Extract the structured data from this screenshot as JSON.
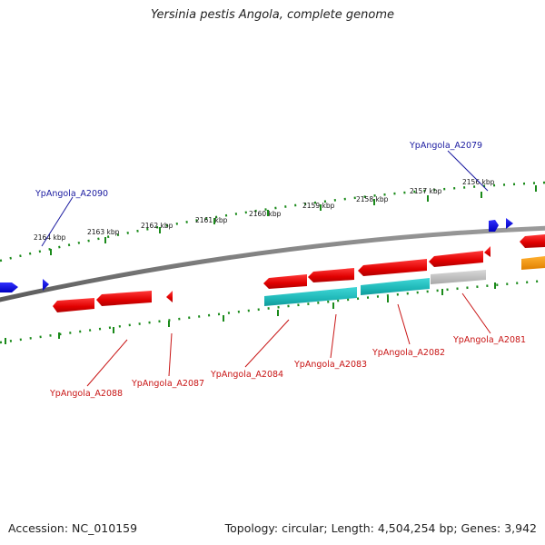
{
  "title": "Yersinia pestis Angola, complete genome",
  "footer": {
    "accession": "Accession: NC_010159",
    "topology": "Topology: circular; Length: 4,504,254 bp; Genes: 3,942"
  },
  "colors": {
    "backbone": "#7f7f7f",
    "tick": "#1a8a1a",
    "forward_gene": "#1010e6",
    "reverse_gene": "#e60000",
    "rna": "#20c0c0",
    "pseudo": "#c0c0c0",
    "other": "#ff9900",
    "forward_label": "#1a1aa0",
    "reverse_label": "#c81414"
  },
  "scale": {
    "kbp_labels": [
      "2164 kbp",
      "2163 kbp",
      "2162 kbp",
      "2161 kbp",
      "2160 kbp",
      "2159 kbp",
      "2158 kbp",
      "2157 kbp",
      "2156 kbp"
    ]
  },
  "gene_labels": {
    "forward": [
      "YpAngola_A2090",
      "YpAngola_A2079"
    ],
    "reverse": [
      "YpAngola_A2088",
      "YpAngola_A2087",
      "YpAngola_A2084",
      "YpAngola_A2083",
      "YpAngola_A2082",
      "YpAngola_A2081"
    ]
  }
}
